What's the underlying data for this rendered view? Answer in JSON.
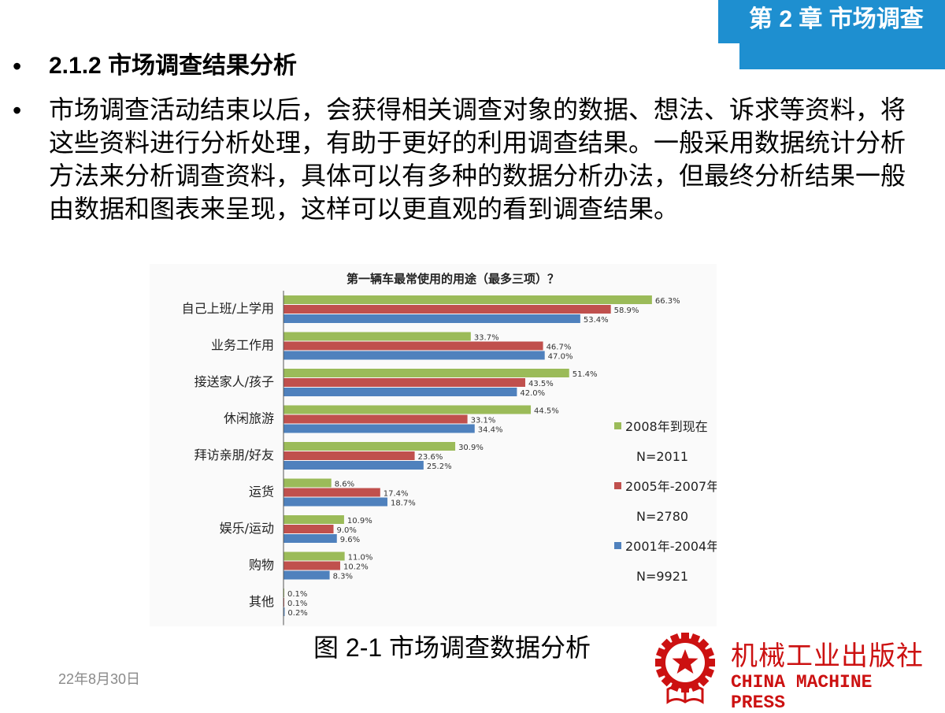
{
  "header": {
    "chapter": "第 2 章 市场调查"
  },
  "bullets": [
    {
      "text": "2.1.2 市场调查结果分析"
    },
    {
      "text": "市场调查活动结束以后，会获得相关调查对象的数据、想法、诉求等资料，将这些资料进行分析处理，有助于更好的利用调查结果。一般采用数据统计分析方法来分析调查资料，具体可以有多种的数据分析办法，但最终分析结果一般由数据和图表来呈现，这样可以更直观的看到调查结果。"
    }
  ],
  "chart_data": {
    "type": "bar",
    "orientation": "horizontal",
    "title": "第一辆车最常使用的用途（最多三项）？",
    "categories": [
      "自己上班/上学用",
      "业务工作用",
      "接送家人/孩子",
      "休闲旅游",
      "拜访亲朋/好友",
      "运货",
      "娱乐/运动",
      "购物",
      "其他"
    ],
    "series": [
      {
        "name": "2008年到现在",
        "n": "N=2011",
        "color": "#9bbb59",
        "values": [
          66.3,
          33.7,
          51.4,
          44.5,
          30.9,
          8.6,
          10.9,
          11.0,
          0.1
        ],
        "labels": [
          "66.3%",
          "33.7%",
          "51.4%",
          "44.5%",
          "30.9%",
          "8.6%",
          "10.9%",
          "11.0%",
          "0.1%"
        ]
      },
      {
        "name": "2005年-2007年",
        "n": "N=2780",
        "color": "#c0504d",
        "values": [
          58.9,
          46.7,
          43.5,
          33.1,
          23.6,
          17.4,
          9.0,
          10.2,
          0.1
        ],
        "labels": [
          "58.9%",
          "46.7%",
          "43.5%",
          "33.1%",
          "23.6%",
          "17.4%",
          "9.0%",
          "10.2%",
          "0.1%"
        ]
      },
      {
        "name": "2001年-2004年",
        "n": "N=9921",
        "color": "#4f81bd",
        "values": [
          53.4,
          47.0,
          42.0,
          34.4,
          25.2,
          18.7,
          9.6,
          8.3,
          0.2
        ],
        "labels": [
          "53.4%",
          "47.0%",
          "42.0%",
          "34.4%",
          "25.2%",
          "18.7%",
          "9.6%",
          "8.3%",
          "0.2%"
        ]
      }
    ],
    "xlim": [
      0,
      70
    ],
    "grid": false,
    "legend": "right"
  },
  "caption": "图 2-1  市场调查数据分析",
  "footer": {
    "date": "22年8月30日"
  },
  "publisher": {
    "name_cn": "机械工业出版社",
    "name_en": "CHINA MACHINE PRESS",
    "logo": "gear-star-book-icon"
  }
}
